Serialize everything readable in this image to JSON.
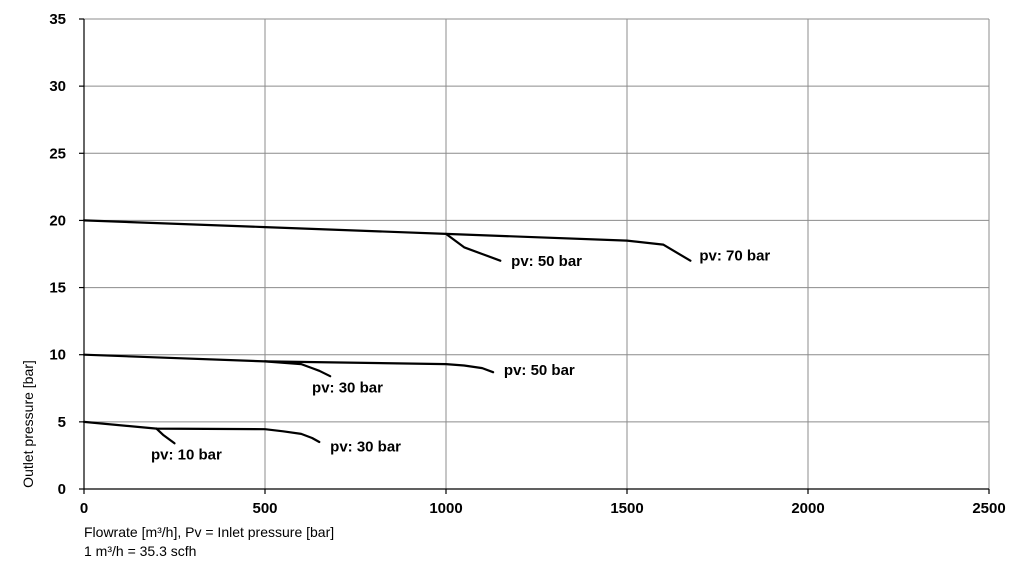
{
  "chart_data": {
    "type": "line",
    "xlabel": "Flowrate [m³/h], Pv = Inlet pressure [bar]",
    "conversion_note": "1 m³/h = 35.3 scfh",
    "ylabel": "Outlet pressure [bar]",
    "xlim": [
      0,
      2500
    ],
    "ylim": [
      0,
      35
    ],
    "x_ticks": [
      0,
      500,
      1000,
      1500,
      2000,
      2500
    ],
    "y_ticks": [
      0,
      5,
      10,
      15,
      20,
      25,
      30,
      35
    ],
    "grid": true,
    "series": [
      {
        "points": [
          [
            0,
            20
          ],
          [
            500,
            19.5
          ],
          [
            1000,
            19
          ],
          [
            1500,
            18.5
          ],
          [
            1600,
            18.2
          ],
          [
            1675,
            17
          ]
        ]
      },
      {
        "points": [
          [
            1000,
            19
          ],
          [
            1050,
            18
          ],
          [
            1100,
            17.5
          ],
          [
            1150,
            17
          ]
        ]
      },
      {
        "points": [
          [
            0,
            10
          ],
          [
            500,
            9.5
          ],
          [
            1000,
            9.3
          ],
          [
            1050,
            9.2
          ],
          [
            1100,
            9
          ],
          [
            1130,
            8.7
          ]
        ]
      },
      {
        "points": [
          [
            500,
            9.5
          ],
          [
            600,
            9.3
          ],
          [
            630,
            9
          ],
          [
            650,
            8.8
          ],
          [
            680,
            8.4
          ]
        ]
      },
      {
        "points": [
          [
            0,
            5
          ],
          [
            200,
            4.5
          ],
          [
            500,
            4.45
          ],
          [
            550,
            4.3
          ],
          [
            600,
            4.1
          ],
          [
            630,
            3.8
          ],
          [
            650,
            3.5
          ]
        ]
      },
      {
        "points": [
          [
            200,
            4.5
          ],
          [
            220,
            4.0
          ],
          [
            250,
            3.4
          ]
        ]
      }
    ],
    "annotations": [
      {
        "text": "pv: 70 bar",
        "x": 1700,
        "y": 17.0
      },
      {
        "text": "pv: 50 bar",
        "x": 1180,
        "y": 16.6
      },
      {
        "text": "pv: 50 bar",
        "x": 1160,
        "y": 8.5
      },
      {
        "text": "pv: 30 bar",
        "x": 630,
        "y": 7.2
      },
      {
        "text": "pv: 30 bar",
        "x": 680,
        "y": 2.8
      },
      {
        "text": "pv: 10 bar",
        "x": 185,
        "y": 2.2
      }
    ]
  }
}
